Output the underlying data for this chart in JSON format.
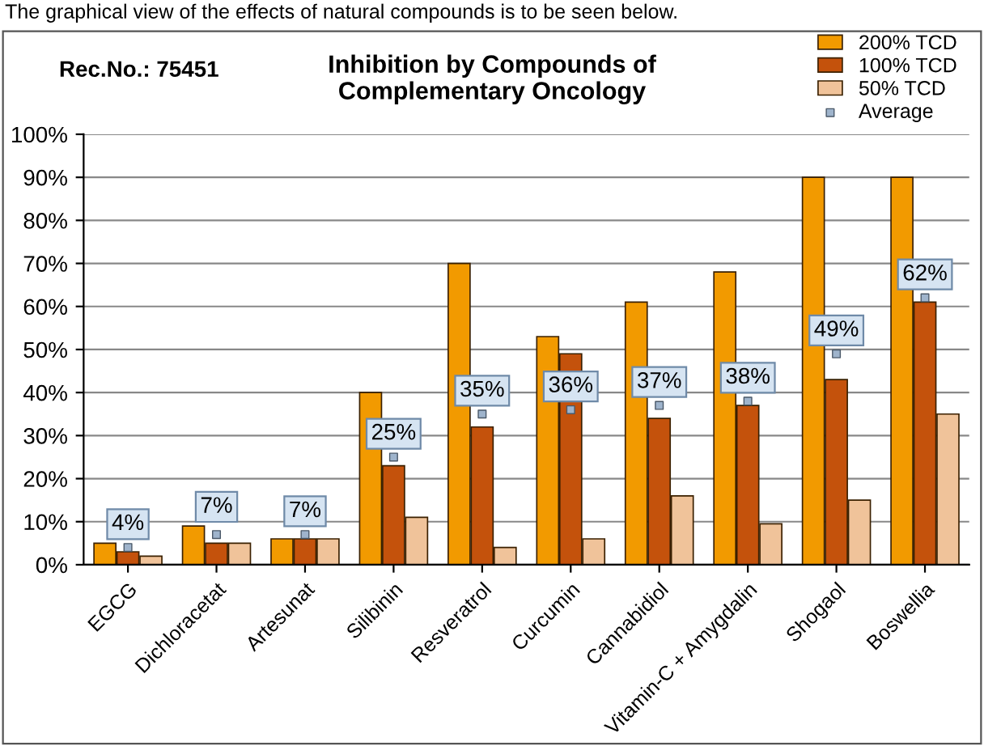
{
  "chart_data": {
    "type": "bar",
    "title": "Inhibition by Compounds of\nComplementary Oncology",
    "categories": [
      "EGCG",
      "Dichloracetat",
      "Artesunat",
      "Silibinin",
      "Resveratrol",
      "Curcumin",
      "Cannabidiol",
      "Vitamin-C + Amygdalin",
      "Shogaol",
      "Boswellia"
    ],
    "series": [
      {
        "name": "200% TCD",
        "color": "#f29a00",
        "values": [
          5,
          9,
          6,
          40,
          70,
          53,
          61,
          68,
          90,
          90
        ]
      },
      {
        "name": "100% TCD",
        "color": "#c4520c",
        "values": [
          3,
          5,
          6,
          23,
          32,
          49,
          34,
          37,
          43,
          61
        ]
      },
      {
        "name": "50% TCD",
        "color": "#f0c39a",
        "values": [
          2,
          5,
          6,
          11,
          4,
          6,
          16,
          9.5,
          15,
          35
        ]
      },
      {
        "name": "Average",
        "type": "scatter",
        "marker": "square",
        "color": "#9fb4cc",
        "values": [
          4,
          7,
          7,
          25,
          35,
          36,
          37,
          38,
          49,
          62
        ],
        "value_labels": [
          "4%",
          "7%",
          "7%",
          "25%",
          "35%",
          "36%",
          "37%",
          "38%",
          "49%",
          "62%"
        ]
      }
    ],
    "ylim": [
      0,
      100
    ],
    "yticks": [
      {
        "value": 0,
        "label": "0%"
      },
      {
        "value": 10,
        "label": "10%"
      },
      {
        "value": 20,
        "label": "20%"
      },
      {
        "value": 30,
        "label": "30%"
      },
      {
        "value": 40,
        "label": "40%"
      },
      {
        "value": 50,
        "label": "50%"
      },
      {
        "value": 60,
        "label": "60%"
      },
      {
        "value": 70,
        "label": "70%"
      },
      {
        "value": 80,
        "label": "80%"
      },
      {
        "value": 90,
        "label": "90%"
      },
      {
        "value": 100,
        "label": "100%"
      }
    ],
    "grid": "y",
    "legend": "top right",
    "annotations": [
      "The graphical view of the effects of natural compounds is to be seen below.",
      "Rec.No.: 75451"
    ]
  }
}
